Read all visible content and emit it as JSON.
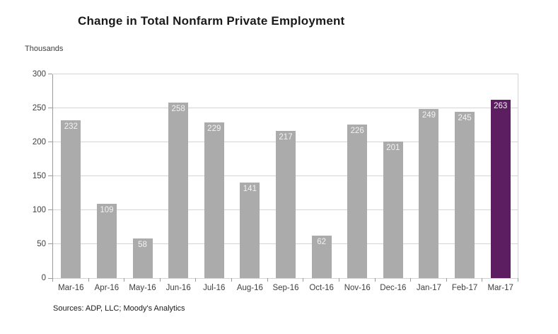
{
  "chart_data": {
    "type": "bar",
    "title": "Change in Total Nonfarm Private Employment",
    "ylabel": "Thousands",
    "source": "Sources: ADP, LLC; Moody's Analytics",
    "categories": [
      "Mar-16",
      "Apr-16",
      "May-16",
      "Jun-16",
      "Jul-16",
      "Aug-16",
      "Sep-16",
      "Oct-16",
      "Nov-16",
      "Dec-16",
      "Jan-17",
      "Feb-17",
      "Mar-17"
    ],
    "values": [
      232,
      109,
      58,
      258,
      229,
      141,
      217,
      62,
      226,
      201,
      249,
      245,
      263
    ],
    "ylim": [
      0,
      300
    ],
    "ytick_step": 50,
    "yticks": [
      0,
      50,
      100,
      150,
      200,
      250,
      300
    ],
    "grid": true,
    "legend": "none",
    "colors": {
      "bar": "#ABABAB",
      "highlight_bar": "#5C1E60",
      "value_label": "#F2F2F2",
      "gridline": "#D4D4D4",
      "axis_line": "#9B9B9B",
      "tick_text": "#3F3F3F"
    },
    "highlight_index": 12,
    "value_labels_shown": true
  }
}
